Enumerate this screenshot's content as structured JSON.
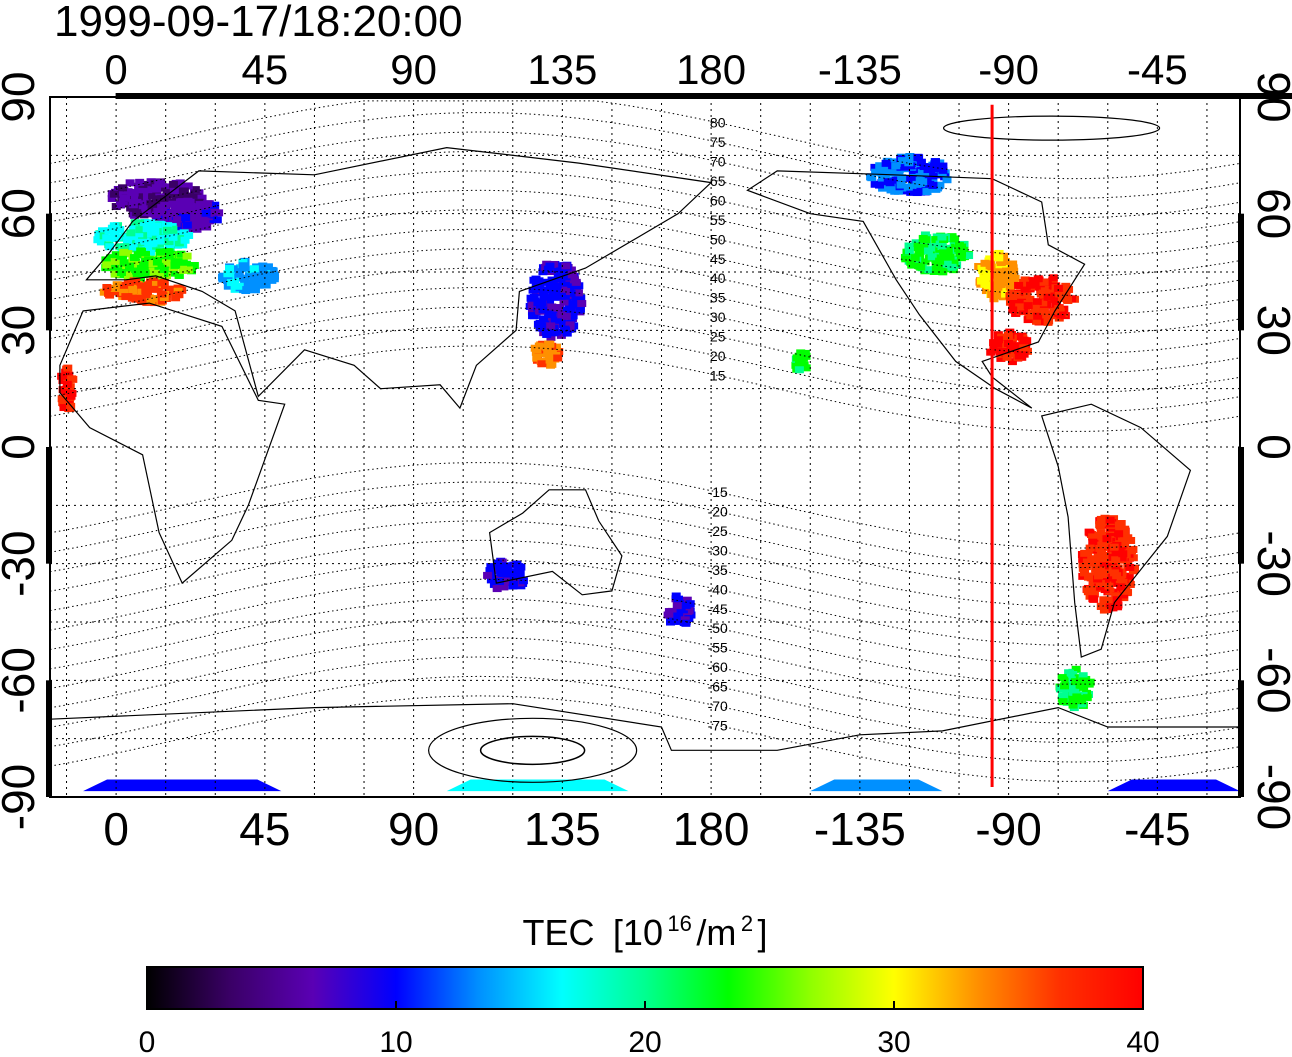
{
  "title": "1999-09-17/18:20:00",
  "map": {
    "lon_ticks": [
      {
        "lon": 0,
        "label": "0"
      },
      {
        "lon": 45,
        "label": "45"
      },
      {
        "lon": 90,
        "label": "90"
      },
      {
        "lon": 135,
        "label": "135"
      },
      {
        "lon": 180,
        "label": "180"
      },
      {
        "lon": 225,
        "label": "-135"
      },
      {
        "lon": 270,
        "label": "-90"
      },
      {
        "lon": 315,
        "label": "-45"
      }
    ],
    "lat_ticks": [
      {
        "lat": 90,
        "label": "90"
      },
      {
        "lat": 60,
        "label": "60"
      },
      {
        "lat": 30,
        "label": "30"
      },
      {
        "lat": 0,
        "label": "0"
      },
      {
        "lat": -30,
        "label": "-30"
      },
      {
        "lat": -60,
        "label": "-60"
      },
      {
        "lat": -90,
        "label": "-90"
      }
    ],
    "lon_range": [
      -20,
      340
    ],
    "lat_range": [
      -90,
      90
    ],
    "grid": true,
    "terminator_lon": -95,
    "terminator_color": "#ff0000",
    "contour_labels": [
      {
        "text": "80",
        "lat": 80
      },
      {
        "text": "75",
        "lat": 75
      },
      {
        "text": "70",
        "lat": 70
      },
      {
        "text": "65",
        "lat": 65
      },
      {
        "text": "60",
        "lat": 60
      },
      {
        "text": "55",
        "lat": 55
      },
      {
        "text": "50",
        "lat": 50
      },
      {
        "text": "45",
        "lat": 45
      },
      {
        "text": "40",
        "lat": 40
      },
      {
        "text": "35",
        "lat": 35
      },
      {
        "text": "30",
        "lat": 30
      },
      {
        "text": "25",
        "lat": 25
      },
      {
        "text": "20",
        "lat": 20
      },
      {
        "text": "15",
        "lat": 15
      },
      {
        "text": "-15",
        "lat": -15
      },
      {
        "text": "-20",
        "lat": -20
      },
      {
        "text": "-25",
        "lat": -25
      },
      {
        "text": "-30",
        "lat": -30
      },
      {
        "text": "-35",
        "lat": -35
      },
      {
        "text": "-40",
        "lat": -40
      },
      {
        "text": "-45",
        "lat": -45
      },
      {
        "text": "-50",
        "lat": -50
      },
      {
        "text": "-55",
        "lat": -55
      },
      {
        "text": "-60",
        "lat": -60
      },
      {
        "text": "-65",
        "lat": -65
      },
      {
        "text": "-70",
        "lat": -70
      },
      {
        "text": "-75",
        "lat": -75
      }
    ],
    "tec_clusters": [
      {
        "lon": 12,
        "lat": 64,
        "rx": 14,
        "ry": 5,
        "tec": 5
      },
      {
        "lon": 22,
        "lat": 60,
        "rx": 10,
        "ry": 4,
        "tec": 7
      },
      {
        "lon": 8,
        "lat": 54,
        "rx": 14,
        "ry": 4,
        "tec": 18
      },
      {
        "lon": 10,
        "lat": 47,
        "rx": 14,
        "ry": 4,
        "tec": 24
      },
      {
        "lon": 8,
        "lat": 40,
        "rx": 12,
        "ry": 3,
        "tec": 36
      },
      {
        "lon": 40,
        "lat": 44,
        "rx": 8,
        "ry": 4,
        "tec": 14
      },
      {
        "lon": 133,
        "lat": 38,
        "rx": 8,
        "ry": 10,
        "tec": 9
      },
      {
        "lon": 130,
        "lat": 24,
        "rx": 4,
        "ry": 3,
        "tec": 34
      },
      {
        "lon": 248,
        "lat": 50,
        "rx": 10,
        "ry": 5,
        "tec": 22
      },
      {
        "lon": 266,
        "lat": 44,
        "rx": 6,
        "ry": 6,
        "tec": 32
      },
      {
        "lon": 280,
        "lat": 38,
        "rx": 10,
        "ry": 6,
        "tec": 38
      },
      {
        "lon": 270,
        "lat": 26,
        "rx": 6,
        "ry": 4,
        "tec": 39
      },
      {
        "lon": 240,
        "lat": 70,
        "rx": 12,
        "ry": 5,
        "tec": 12
      },
      {
        "lon": 300,
        "lat": -30,
        "rx": 8,
        "ry": 12,
        "tec": 38
      },
      {
        "lon": 290,
        "lat": -62,
        "rx": 5,
        "ry": 5,
        "tec": 22
      },
      {
        "lon": 118,
        "lat": -33,
        "rx": 6,
        "ry": 4,
        "tec": 9
      },
      {
        "lon": 170,
        "lat": -42,
        "rx": 4,
        "ry": 4,
        "tec": 9
      },
      {
        "lon": 207,
        "lat": 22,
        "rx": 2,
        "ry": 3,
        "tec": 23
      },
      {
        "lon": -15,
        "lat": 15,
        "rx": 2,
        "ry": 6,
        "tec": 38
      }
    ],
    "antarctic_bands": [
      {
        "lon_start": -10,
        "lon_end": 50,
        "tec": 11
      },
      {
        "lon_start": 100,
        "lon_end": 155,
        "tec": 16
      },
      {
        "lon_start": 210,
        "lon_end": 250,
        "tec": 14
      },
      {
        "lon_start": 300,
        "lon_end": 340,
        "tec": 11
      }
    ]
  },
  "colorbar": {
    "title": "TEC",
    "unit_open": "[10",
    "unit_sup1": "16",
    "unit_mid": "/m",
    "unit_sup2": "2",
    "unit_close": "]",
    "min": 0,
    "max": 40,
    "ticks": [
      {
        "value": 0,
        "label": "0"
      },
      {
        "value": 10,
        "label": "10"
      },
      {
        "value": 20,
        "label": "20"
      },
      {
        "value": 30,
        "label": "30"
      },
      {
        "value": 40,
        "label": "40"
      }
    ],
    "colors": [
      "#000000",
      "#3a0066",
      "#5a00b4",
      "#0000ff",
      "#0090ff",
      "#00ffff",
      "#00ff90",
      "#00ff00",
      "#90ff00",
      "#ffff00",
      "#ff9000",
      "#ff3000",
      "#ff0000"
    ]
  }
}
